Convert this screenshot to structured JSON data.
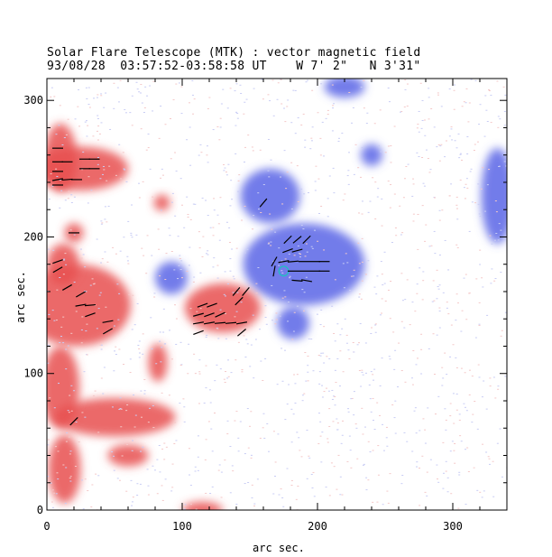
{
  "title_line1": "Solar Flare Telescope (MTK) : vector magnetic field",
  "title_line2": "93/08/28  03:57:52-03:58:58 UT    W 7' 2\"   N 3'31\"",
  "chart_data": {
    "type": "heatmap",
    "title": "Solar Flare Telescope (MTK) : vector magnetic field",
    "subtitle": "93/08/28  03:57:52-03:58:58 UT    W 7' 2\"   N 3'31\"",
    "xlabel": "arc sec.",
    "ylabel": "arc sec.",
    "xlim": [
      0,
      340
    ],
    "ylim": [
      0,
      316
    ],
    "xticks": [
      0,
      100,
      200,
      300
    ],
    "yticks": [
      0,
      100,
      200,
      300
    ],
    "colors": {
      "positive": "#e85050",
      "negative": "#5a64e6",
      "contour": "#20c0c0",
      "vector": "#000000"
    },
    "regions": [
      {
        "polarity": "negative",
        "cx": 190,
        "cy": 180,
        "rx": 45,
        "ry": 30
      },
      {
        "polarity": "negative",
        "cx": 165,
        "cy": 230,
        "rx": 22,
        "ry": 20
      },
      {
        "polarity": "negative",
        "cx": 182,
        "cy": 137,
        "rx": 12,
        "ry": 12
      },
      {
        "polarity": "negative",
        "cx": 92,
        "cy": 170,
        "rx": 12,
        "ry": 12
      },
      {
        "polarity": "negative",
        "cx": 220,
        "cy": 310,
        "rx": 15,
        "ry": 8
      },
      {
        "polarity": "negative",
        "cx": 333,
        "cy": 230,
        "rx": 12,
        "ry": 35
      },
      {
        "polarity": "negative",
        "cx": 240,
        "cy": 260,
        "rx": 8,
        "ry": 8
      },
      {
        "polarity": "positive",
        "cx": 130,
        "cy": 148,
        "rx": 28,
        "ry": 18
      },
      {
        "polarity": "positive",
        "cx": 25,
        "cy": 250,
        "rx": 35,
        "ry": 16
      },
      {
        "polarity": "positive",
        "cx": 10,
        "cy": 258,
        "rx": 12,
        "ry": 25
      },
      {
        "polarity": "positive",
        "cx": 22,
        "cy": 150,
        "rx": 40,
        "ry": 30
      },
      {
        "polarity": "positive",
        "cx": 12,
        "cy": 180,
        "rx": 12,
        "ry": 15
      },
      {
        "polarity": "positive",
        "cx": 20,
        "cy": 203,
        "rx": 7,
        "ry": 7
      },
      {
        "polarity": "positive",
        "cx": 50,
        "cy": 68,
        "rx": 45,
        "ry": 14
      },
      {
        "polarity": "positive",
        "cx": 10,
        "cy": 90,
        "rx": 14,
        "ry": 30
      },
      {
        "polarity": "positive",
        "cx": 13,
        "cy": 30,
        "rx": 12,
        "ry": 25
      },
      {
        "polarity": "positive",
        "cx": 82,
        "cy": 108,
        "rx": 7,
        "ry": 14
      },
      {
        "polarity": "positive",
        "cx": 85,
        "cy": 225,
        "rx": 6,
        "ry": 6
      },
      {
        "polarity": "positive",
        "cx": 60,
        "cy": 40,
        "rx": 15,
        "ry": 8
      },
      {
        "polarity": "positive",
        "cx": 115,
        "cy": 0,
        "rx": 15,
        "ry": 6
      }
    ],
    "contour": {
      "cx": 175,
      "cy": 175,
      "r": 3.5
    },
    "vectors": [
      {
        "x": 178,
        "y": 198,
        "angle": 45
      },
      {
        "x": 185,
        "y": 198,
        "angle": 40
      },
      {
        "x": 192,
        "y": 198,
        "angle": 45
      },
      {
        "x": 178,
        "y": 190,
        "angle": 20
      },
      {
        "x": 185,
        "y": 190,
        "angle": 15
      },
      {
        "x": 168,
        "y": 182,
        "angle": 60
      },
      {
        "x": 175,
        "y": 182,
        "angle": 10
      },
      {
        "x": 182,
        "y": 182,
        "angle": 5
      },
      {
        "x": 190,
        "y": 182,
        "angle": 0
      },
      {
        "x": 198,
        "y": 182,
        "angle": 0
      },
      {
        "x": 205,
        "y": 182,
        "angle": 0
      },
      {
        "x": 168,
        "y": 175,
        "angle": 80
      },
      {
        "x": 182,
        "y": 175,
        "angle": 0
      },
      {
        "x": 190,
        "y": 175,
        "angle": 0
      },
      {
        "x": 198,
        "y": 175,
        "angle": 0
      },
      {
        "x": 205,
        "y": 175,
        "angle": 0
      },
      {
        "x": 185,
        "y": 168,
        "angle": -5
      },
      {
        "x": 192,
        "y": 168,
        "angle": -10
      },
      {
        "x": 160,
        "y": 225,
        "angle": 50
      },
      {
        "x": 115,
        "y": 150,
        "angle": 20
      },
      {
        "x": 122,
        "y": 150,
        "angle": 20
      },
      {
        "x": 112,
        "y": 143,
        "angle": 15
      },
      {
        "x": 120,
        "y": 143,
        "angle": 20
      },
      {
        "x": 128,
        "y": 143,
        "angle": 25
      },
      {
        "x": 112,
        "y": 137,
        "angle": 10
      },
      {
        "x": 120,
        "y": 137,
        "angle": 10
      },
      {
        "x": 128,
        "y": 137,
        "angle": 5
      },
      {
        "x": 136,
        "y": 137,
        "angle": 5
      },
      {
        "x": 144,
        "y": 137,
        "angle": 10
      },
      {
        "x": 112,
        "y": 130,
        "angle": 20
      },
      {
        "x": 144,
        "y": 130,
        "angle": 40
      },
      {
        "x": 140,
        "y": 160,
        "angle": 50
      },
      {
        "x": 147,
        "y": 160,
        "angle": 50
      },
      {
        "x": 142,
        "y": 153,
        "angle": 45
      },
      {
        "x": 8,
        "y": 255,
        "angle": 0
      },
      {
        "x": 15,
        "y": 255,
        "angle": 0
      },
      {
        "x": 28,
        "y": 257,
        "angle": 0
      },
      {
        "x": 35,
        "y": 257,
        "angle": 0
      },
      {
        "x": 8,
        "y": 248,
        "angle": 0
      },
      {
        "x": 28,
        "y": 250,
        "angle": 0
      },
      {
        "x": 35,
        "y": 250,
        "angle": 0
      },
      {
        "x": 8,
        "y": 242,
        "angle": 10
      },
      {
        "x": 15,
        "y": 242,
        "angle": 5
      },
      {
        "x": 22,
        "y": 242,
        "angle": 0
      },
      {
        "x": 8,
        "y": 238,
        "angle": 0
      },
      {
        "x": 8,
        "y": 265,
        "angle": 0
      },
      {
        "x": 20,
        "y": 203,
        "angle": 0
      },
      {
        "x": 8,
        "y": 182,
        "angle": 20
      },
      {
        "x": 8,
        "y": 176,
        "angle": 30
      },
      {
        "x": 15,
        "y": 163,
        "angle": 30
      },
      {
        "x": 25,
        "y": 158,
        "angle": 30
      },
      {
        "x": 25,
        "y": 150,
        "angle": 10
      },
      {
        "x": 32,
        "y": 150,
        "angle": 5
      },
      {
        "x": 32,
        "y": 143,
        "angle": 20
      },
      {
        "x": 45,
        "y": 138,
        "angle": 10
      },
      {
        "x": 45,
        "y": 131,
        "angle": 30
      },
      {
        "x": 20,
        "y": 65,
        "angle": 45
      }
    ]
  }
}
